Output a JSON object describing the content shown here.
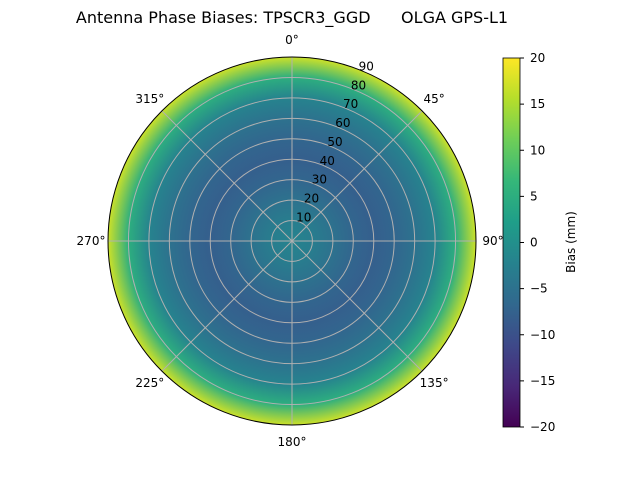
{
  "chart_data": {
    "type": "heatmap",
    "projection": "polar",
    "title": "Antenna Phase Biases: TPSCR3_GGD      OLGA GPS-L1",
    "angular_ticks": [
      "0°",
      "45°",
      "90°",
      "135°",
      "180°",
      "225°",
      "270°",
      "315°"
    ],
    "angular_direction": "clockwise",
    "angular_zero": "top",
    "radial_ticks": [
      "10",
      "20",
      "30",
      "40",
      "50",
      "60",
      "70",
      "80",
      "90"
    ],
    "radial_range": [
      0,
      90
    ],
    "zenith_profile": {
      "zenith_deg": [
        0,
        10,
        20,
        30,
        40,
        50,
        60,
        70,
        80,
        90
      ],
      "bias_mm": [
        -2,
        -3,
        -5,
        -7,
        -8,
        -7,
        -5,
        -2,
        5,
        17
      ]
    },
    "colormap": "viridis",
    "colorbar": {
      "label": "Bias (mm)",
      "range": [
        -20,
        20
      ],
      "ticks": [
        "20",
        "15",
        "10",
        "5",
        "0",
        "−5",
        "−10",
        "−15",
        "−20"
      ]
    },
    "grid": true
  }
}
